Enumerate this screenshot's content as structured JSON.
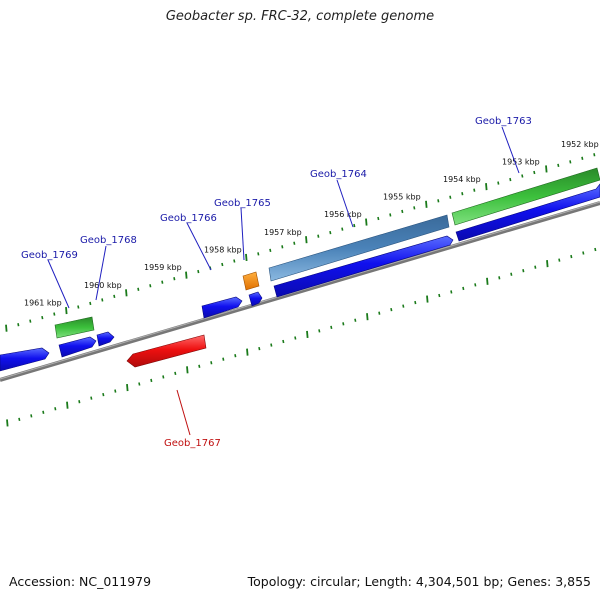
{
  "title": "Geobacter sp. FRC-32, complete genome",
  "footer": {
    "accession": "Accession: NC_011979",
    "summary": "Topology: circular; Length: 4,304,501 bp; Genes: 3,855"
  },
  "colors": {
    "forward_cds": "#1111ee",
    "reverse_cds": "#ee1111",
    "rna_gene": "#2e9a2e",
    "highlight_gene": "#4a80b0",
    "small_feature": "#ee8800",
    "backbone": "#888888",
    "tick": "#1a7a1a",
    "label_forward": "#1a1aa8",
    "label_reverse": "#c01010"
  },
  "ticks": [
    {
      "label": "1952 kbp"
    },
    {
      "label": "1953 kbp"
    },
    {
      "label": "1954 kbp"
    },
    {
      "label": "1955 kbp"
    },
    {
      "label": "1956 kbp"
    },
    {
      "label": "1957 kbp"
    },
    {
      "label": "1958 kbp"
    },
    {
      "label": "1959 kbp"
    },
    {
      "label": "1960 kbp"
    },
    {
      "label": "1961 kbp"
    }
  ],
  "genes": [
    {
      "label": "Geob_1763",
      "strand": "forward"
    },
    {
      "label": "Geob_1764",
      "strand": "forward"
    },
    {
      "label": "Geob_1765",
      "strand": "forward"
    },
    {
      "label": "Geob_1766",
      "strand": "forward"
    },
    {
      "label": "Geob_1767",
      "strand": "reverse"
    },
    {
      "label": "Geob_1768",
      "strand": "forward"
    },
    {
      "label": "Geob_1769",
      "strand": "forward"
    }
  ]
}
